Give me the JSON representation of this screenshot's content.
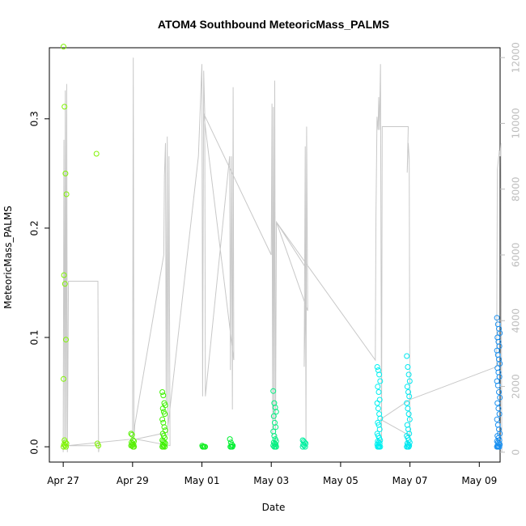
{
  "chart_data": {
    "type": "scatter",
    "title": "ATOM4 Southbound MeteoricMass_PALMS",
    "xlabel": "Date",
    "ylabel": "MeteoricMass_PALMS",
    "x_range": [
      26.6,
      9.7
    ],
    "x_domain_days": [
      26.6,
      39.6
    ],
    "y_left_lim": [
      -0.014,
      0.365
    ],
    "y_right_lim": [
      -300,
      12300
    ],
    "x_ticks": [
      {
        "label": "Apr 27",
        "day": 27
      },
      {
        "label": "Apr 29",
        "day": 29
      },
      {
        "label": "May 01",
        "day": 31
      },
      {
        "label": "May 03",
        "day": 33
      },
      {
        "label": "May 05",
        "day": 35
      },
      {
        "label": "May 07",
        "day": 37
      },
      {
        "label": "May 09",
        "day": 39
      }
    ],
    "y_left_ticks": [
      "0.0",
      "0.1",
      "0.2",
      "0.3"
    ],
    "y_left_tick_values": [
      0,
      0.1,
      0.2,
      0.3
    ],
    "y_right_ticks": [
      "0",
      "2000",
      "4000",
      "6000",
      "8000",
      "10000",
      "12000"
    ],
    "y_right_tick_values": [
      0,
      2000,
      4000,
      6000,
      8000,
      10000,
      12000
    ],
    "point_groups": [
      {
        "day": 27.05,
        "color": "#7ff400",
        "values": [
          0.366,
          0.311,
          0.25,
          0.231,
          0.157,
          0.149,
          0.098,
          0.062,
          0.006,
          0.004,
          0.003,
          0.002,
          0.001,
          0.0,
          0.0
        ]
      },
      {
        "day": 28.0,
        "color": "#7ff400",
        "values": [
          0.268,
          0.003,
          0.001
        ]
      },
      {
        "day": 29.0,
        "color": "#55f000",
        "values": [
          0.012,
          0.011,
          0.006,
          0.005,
          0.004,
          0.003,
          0.002,
          0.001,
          0.001,
          0.0,
          0.0
        ]
      },
      {
        "day": 29.9,
        "color": "#3ef200",
        "values": [
          0.05,
          0.047,
          0.04,
          0.038,
          0.035,
          0.032,
          0.03,
          0.025,
          0.022,
          0.018,
          0.015,
          0.012,
          0.01,
          0.008,
          0.006,
          0.005,
          0.004,
          0.003,
          0.002,
          0.001,
          0.0,
          0.0,
          0.0
        ]
      },
      {
        "day": 31.05,
        "color": "#10ee20",
        "values": [
          0.001,
          0.0,
          0.0,
          0.0,
          0.0
        ]
      },
      {
        "day": 31.85,
        "color": "#00f030",
        "values": [
          0.007,
          0.004,
          0.002,
          0.001,
          0.0,
          0.0,
          0.0
        ]
      },
      {
        "day": 33.1,
        "color": "#00f080",
        "values": [
          0.051,
          0.04,
          0.036,
          0.032,
          0.028,
          0.022,
          0.018,
          0.014,
          0.01,
          0.007,
          0.005,
          0.004,
          0.003,
          0.002,
          0.001,
          0.0,
          0.0,
          0.0
        ]
      },
      {
        "day": 33.95,
        "color": "#00f0a0",
        "values": [
          0.006,
          0.005,
          0.004,
          0.003,
          0.002,
          0.001,
          0.0,
          0.0
        ]
      },
      {
        "day": 36.1,
        "color": "#00f0f0",
        "values": [
          0.073,
          0.07,
          0.066,
          0.06,
          0.055,
          0.05,
          0.043,
          0.04,
          0.035,
          0.03,
          0.026,
          0.022,
          0.02,
          0.016,
          0.012,
          0.01,
          0.008,
          0.006,
          0.005,
          0.004,
          0.003,
          0.002,
          0.001,
          0.0,
          0.0,
          0.0,
          0.0
        ]
      },
      {
        "day": 36.95,
        "color": "#00e8f0",
        "values": [
          0.083,
          0.073,
          0.066,
          0.06,
          0.055,
          0.05,
          0.046,
          0.04,
          0.035,
          0.03,
          0.025,
          0.02,
          0.016,
          0.012,
          0.01,
          0.008,
          0.006,
          0.004,
          0.003,
          0.002,
          0.001,
          0.0,
          0.0,
          0.0
        ]
      },
      {
        "day": 39.55,
        "color": "#1a90f0",
        "values": [
          0.118,
          0.112,
          0.108,
          0.104,
          0.1,
          0.096,
          0.092,
          0.088,
          0.084,
          0.08,
          0.076,
          0.072,
          0.068,
          0.064,
          0.06,
          0.056,
          0.05,
          0.045,
          0.04,
          0.035,
          0.03,
          0.025,
          0.02,
          0.016,
          0.012,
          0.01,
          0.008,
          0.006,
          0.005,
          0.004,
          0.003,
          0.002,
          0.001,
          0.0,
          0.0,
          0.0,
          0.0
        ]
      }
    ],
    "altitude_series": {
      "name": "",
      "color": "#c8c8c8",
      "points": [
        [
          27.0,
          0
        ],
        [
          27.02,
          9500
        ],
        [
          27.04,
          200
        ],
        [
          27.06,
          11000
        ],
        [
          27.08,
          400
        ],
        [
          27.1,
          11200
        ],
        [
          27.12,
          0
        ],
        [
          27.15,
          5200
        ],
        [
          28.0,
          5200
        ],
        [
          28.02,
          0
        ],
        [
          28.04,
          200
        ],
        [
          27.12,
          200
        ],
        [
          29.0,
          400
        ],
        [
          29.02,
          12000
        ],
        [
          29.04,
          400
        ],
        [
          29.06,
          800
        ],
        [
          29.9,
          6000
        ],
        [
          29.92,
          8400
        ],
        [
          29.95,
          9400
        ],
        [
          29.97,
          1500
        ],
        [
          30.0,
          9600
        ],
        [
          30.02,
          500
        ],
        [
          30.05,
          9000
        ],
        [
          30.08,
          200
        ],
        [
          29.1,
          400
        ],
        [
          30.0,
          600
        ],
        [
          30.9,
          9000
        ],
        [
          31.0,
          11800
        ],
        [
          31.02,
          1700
        ],
        [
          31.05,
          11600
        ],
        [
          31.08,
          10300
        ],
        [
          31.1,
          1700
        ],
        [
          31.8,
          9000
        ],
        [
          31.82,
          2500
        ],
        [
          31.85,
          9000
        ],
        [
          31.88,
          1300
        ],
        [
          31.9,
          11100
        ],
        [
          31.92,
          2800
        ],
        [
          31.05,
          10300
        ],
        [
          33.0,
          6000
        ],
        [
          33.02,
          10600
        ],
        [
          33.04,
          500
        ],
        [
          33.06,
          10500
        ],
        [
          33.08,
          1000
        ],
        [
          33.1,
          11300
        ],
        [
          33.12,
          200
        ],
        [
          33.15,
          7000
        ],
        [
          33.15,
          7000
        ],
        [
          34.0,
          5600
        ],
        [
          33.95,
          2600
        ],
        [
          33.98,
          9300
        ],
        [
          34.0,
          200
        ],
        [
          34.02,
          9900
        ],
        [
          34.05,
          4300
        ],
        [
          33.15,
          7000
        ],
        [
          36.0,
          2800
        ],
        [
          36.02,
          7200
        ],
        [
          36.05,
          10200
        ],
        [
          36.08,
          9800
        ],
        [
          36.1,
          10800
        ],
        [
          36.12,
          9800
        ],
        [
          36.15,
          11800
        ],
        [
          36.18,
          300
        ],
        [
          36.2,
          9900
        ],
        [
          36.95,
          9900
        ],
        [
          36.92,
          8500
        ],
        [
          36.95,
          9400
        ],
        [
          36.98,
          8900
        ],
        [
          37.0,
          500
        ],
        [
          36.15,
          1000
        ],
        [
          37.0,
          1600
        ],
        [
          39.5,
          2600
        ],
        [
          39.52,
          8600
        ],
        [
          39.55,
          8900
        ],
        [
          39.58,
          9200
        ],
        [
          39.6,
          9000
        ],
        [
          39.62,
          9400
        ],
        [
          39.65,
          0
        ]
      ]
    }
  }
}
